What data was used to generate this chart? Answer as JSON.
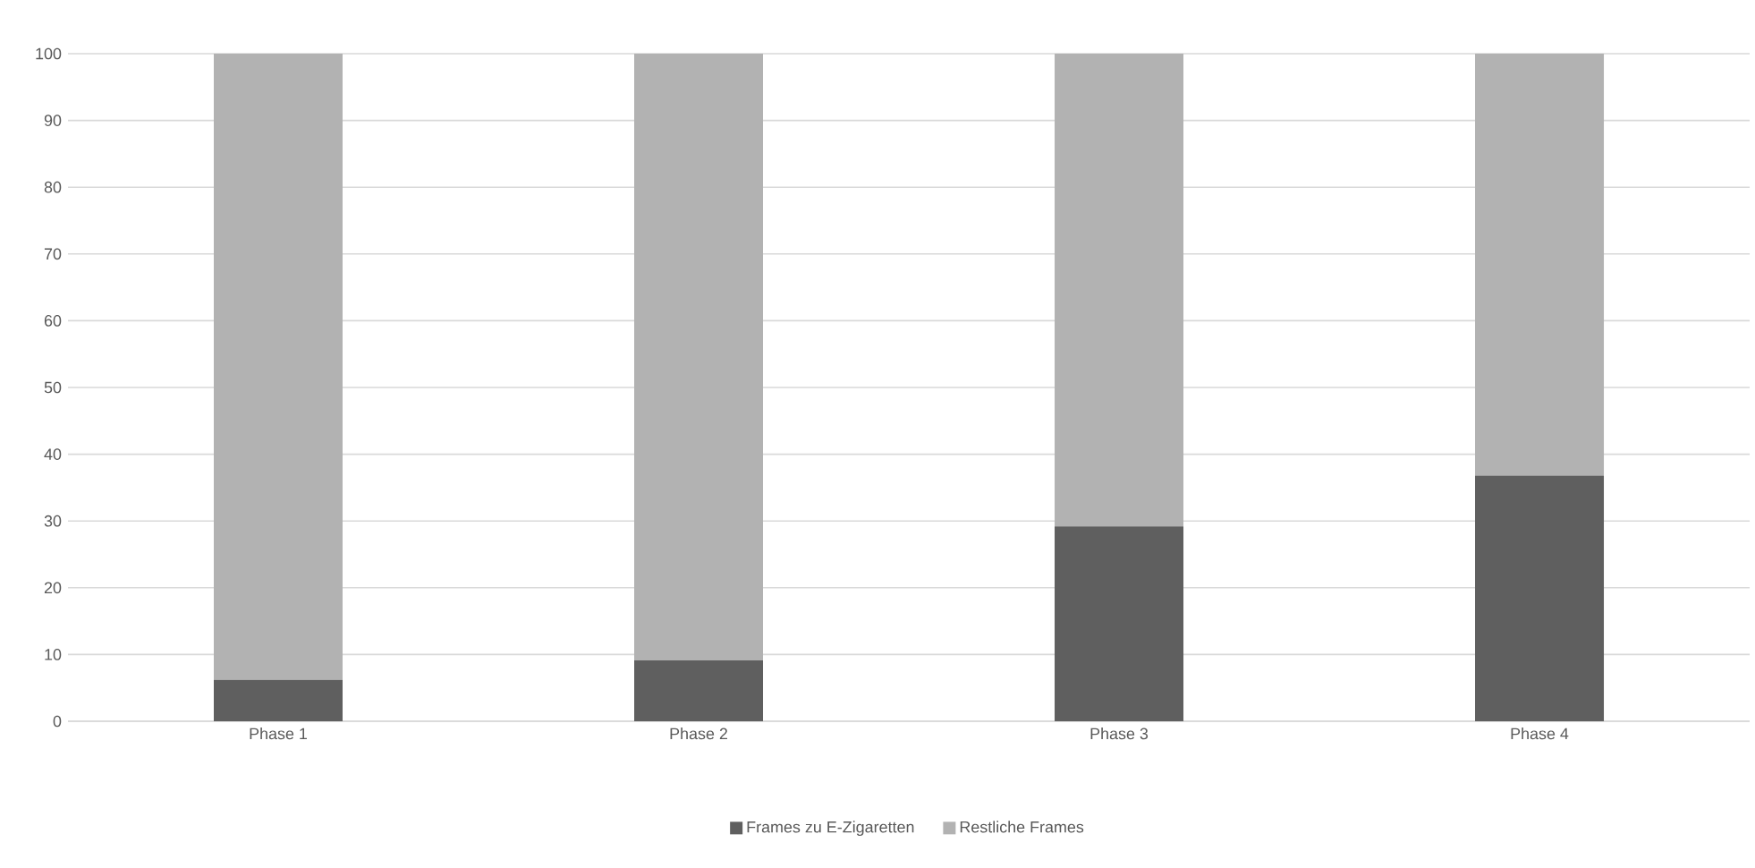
{
  "chart_data": {
    "type": "bar",
    "stacked": true,
    "categories": [
      "Phase 1",
      "Phase 2",
      "Phase 3",
      "Phase 4"
    ],
    "series": [
      {
        "name": "Frames zu E-Zigaretten",
        "color": "#5f5f5f",
        "values": [
          6.2,
          9.1,
          29.2,
          36.8
        ]
      },
      {
        "name": "Restliche Frames",
        "color": "#b2b2b2",
        "values": [
          93.8,
          90.9,
          70.8,
          63.2
        ]
      }
    ],
    "ylim": [
      0,
      100
    ],
    "yticks": [
      0,
      10,
      20,
      30,
      40,
      50,
      60,
      70,
      80,
      90,
      100
    ],
    "grid": "y",
    "legend": "bottom"
  }
}
